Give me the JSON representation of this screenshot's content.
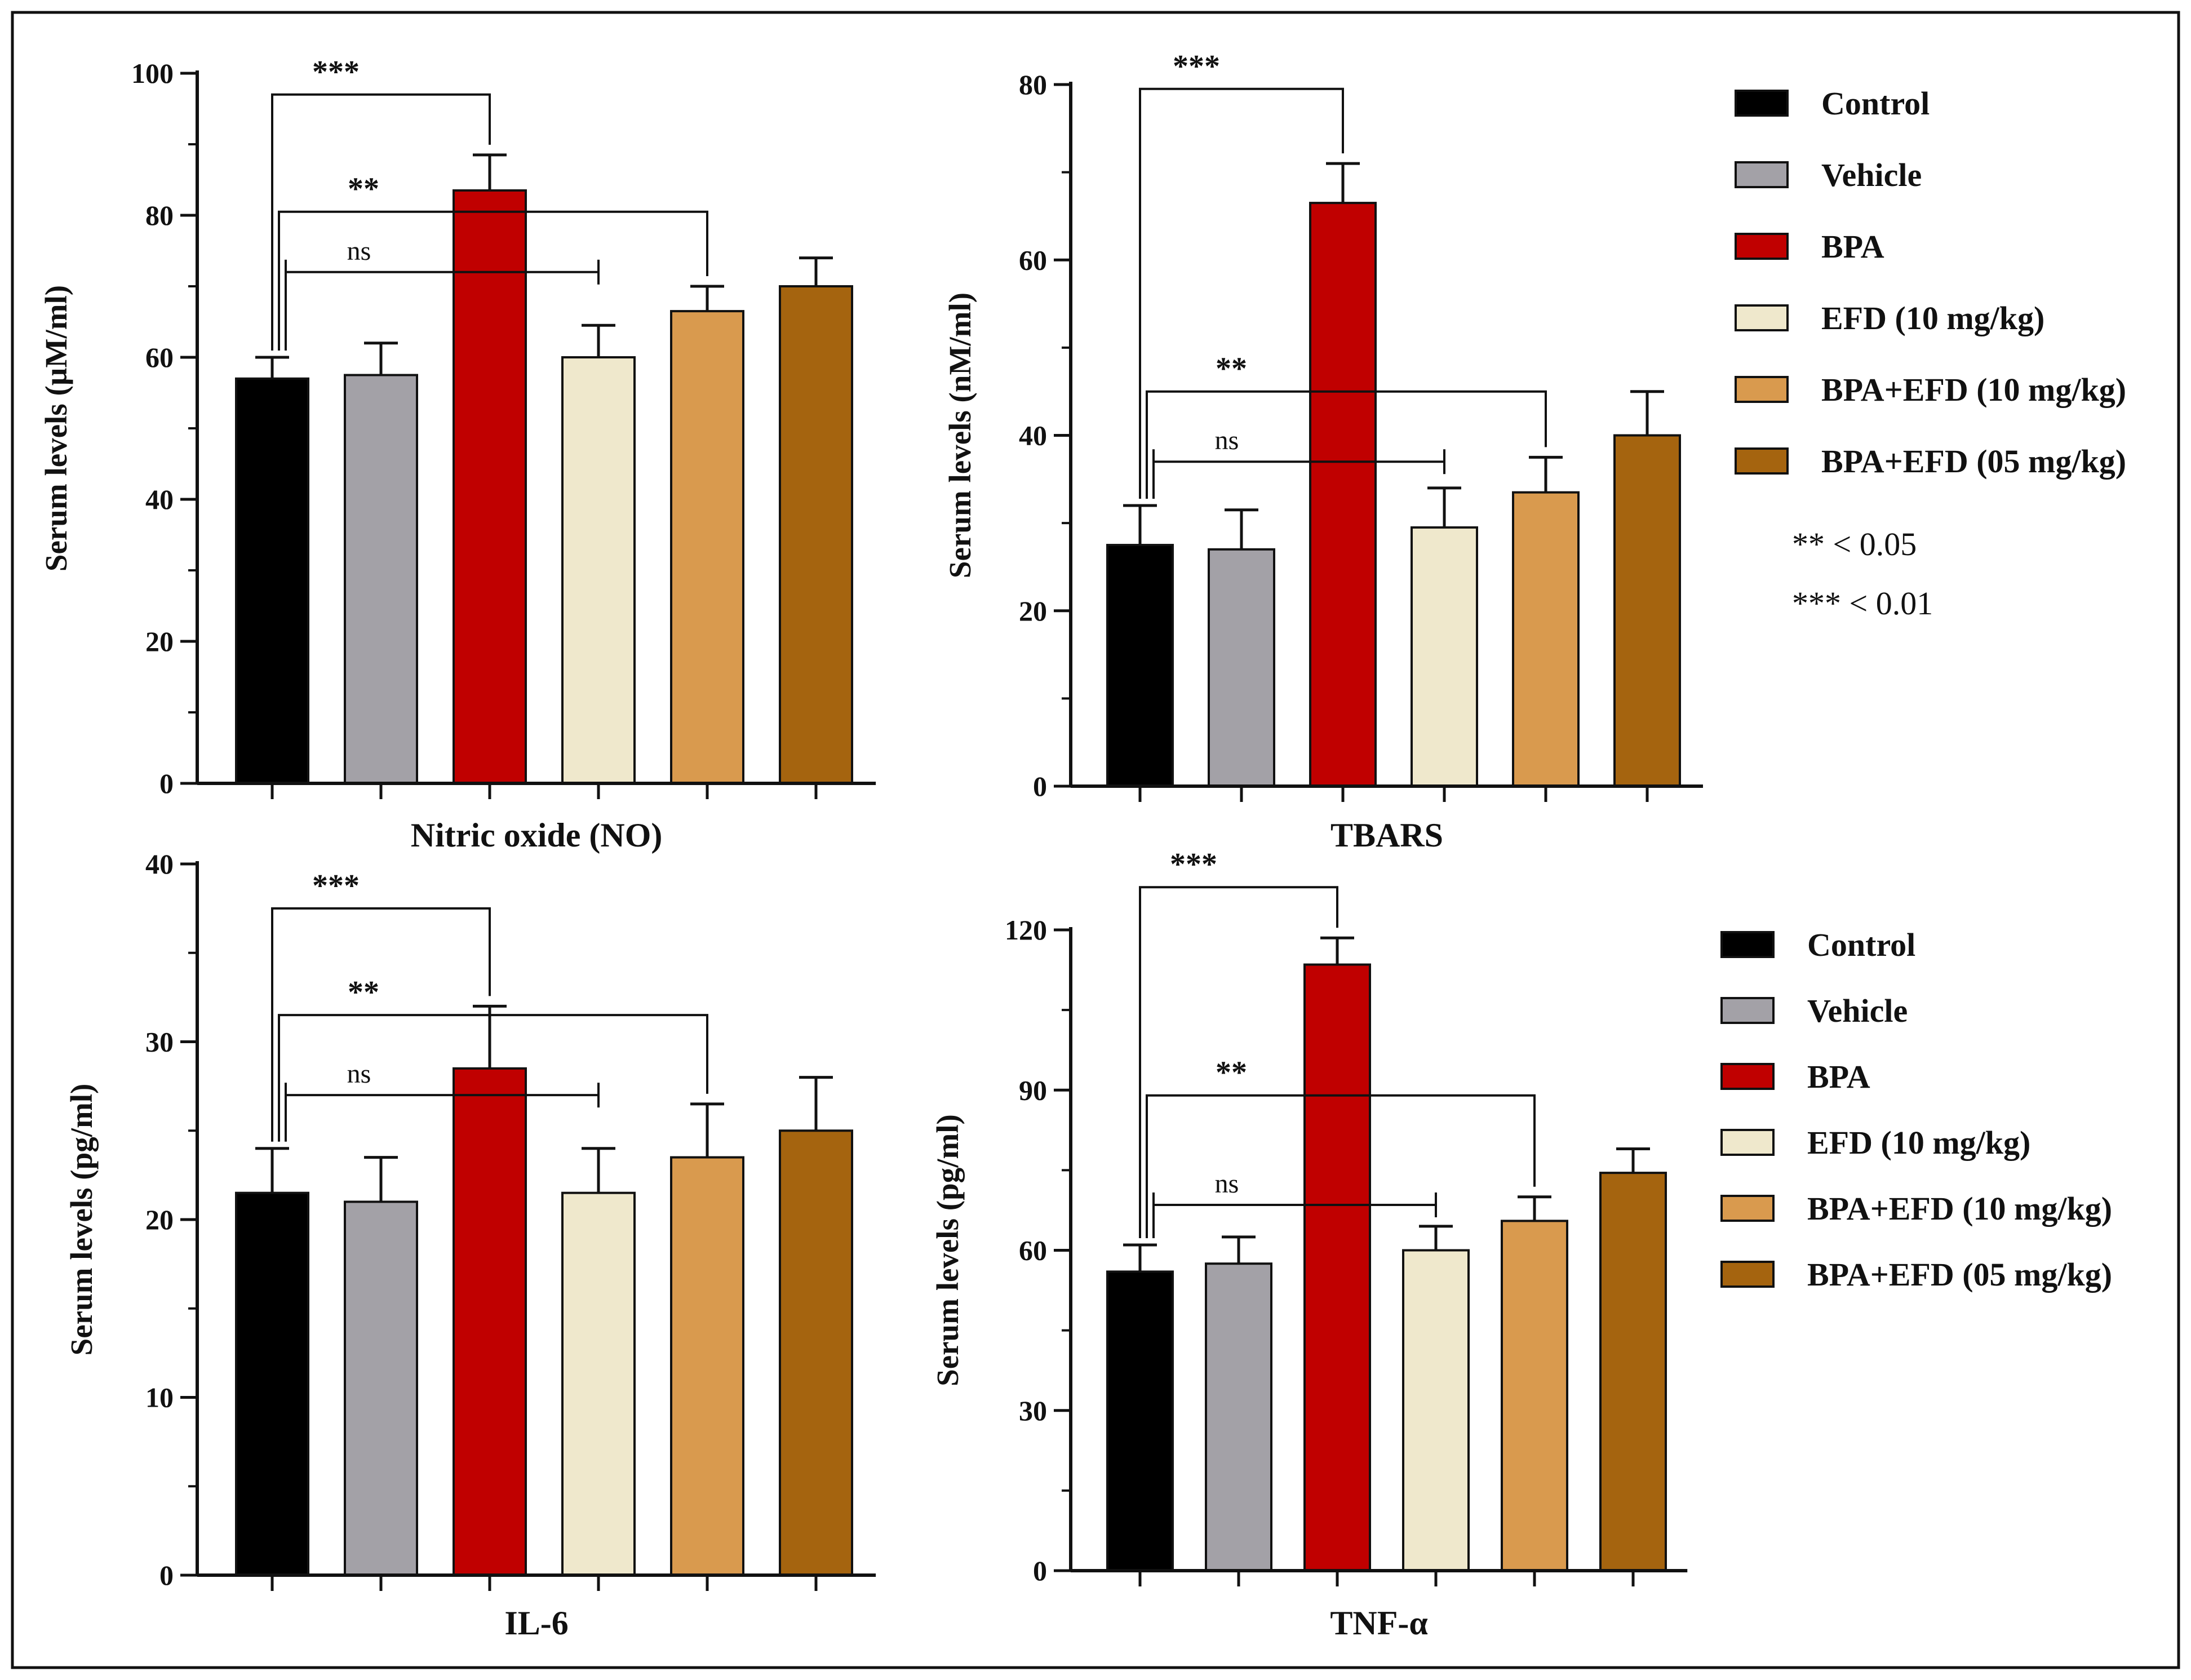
{
  "figure": {
    "frame": true
  },
  "groups": [
    "Control",
    "Vehicle",
    "BPA",
    "EFD (10 mg/kg)",
    "BPA+EFD (10 mg/kg)",
    "BPA+EFD (05 mg/kg)"
  ],
  "colors": [
    "#000000",
    "#a3a1a7",
    "#c00000",
    "#efe8cc",
    "#d99a4e",
    "#a5640f"
  ],
  "significance_note": [
    "** < 0.05",
    "*** < 0.01"
  ],
  "chart_data": [
    {
      "type": "bar",
      "title": "Nitric oxide (NO)",
      "xlabel": "Nitric oxide (NO)",
      "ylabel": "Serum levels (µM/ml)",
      "categories": [
        "Control",
        "Vehicle",
        "BPA",
        "EFD (10 mg/kg)",
        "BPA+EFD (10 mg/kg)",
        "BPA+EFD (05 mg/kg)"
      ],
      "values": [
        57,
        57.5,
        83.5,
        60,
        66.5,
        70
      ],
      "errors": [
        3,
        4.5,
        5,
        4.5,
        3.5,
        4
      ],
      "ylim": [
        0,
        100
      ],
      "yticks": [
        0,
        20,
        40,
        60,
        80,
        100
      ],
      "annotations": [
        {
          "from": 0,
          "to": 2,
          "label": "***",
          "y": 97
        },
        {
          "from": 0,
          "to": 4,
          "label": "**",
          "y": 80.5
        },
        {
          "from": 0,
          "to": 3,
          "label": "ns",
          "y": 72
        }
      ]
    },
    {
      "type": "bar",
      "title": "TBARS",
      "xlabel": "TBARS",
      "ylabel": "Serum levels (nM/ml)",
      "categories": [
        "Control",
        "Vehicle",
        "BPA",
        "EFD (10 mg/kg)",
        "BPA+EFD (10 mg/kg)",
        "BPA+EFD (05 mg/kg)"
      ],
      "values": [
        27.5,
        27,
        66.5,
        29.5,
        33.5,
        40
      ],
      "errors": [
        4.5,
        4.5,
        4.5,
        4.5,
        4,
        5
      ],
      "ylim": [
        0,
        80
      ],
      "yticks": [
        0,
        20,
        40,
        60,
        80
      ],
      "annotations": [
        {
          "from": 0,
          "to": 2,
          "label": "***",
          "y": 79.5
        },
        {
          "from": 0,
          "to": 4,
          "label": "**",
          "y": 45
        },
        {
          "from": 0,
          "to": 3,
          "label": "ns",
          "y": 37
        }
      ]
    },
    {
      "type": "bar",
      "title": "IL-6",
      "xlabel": "IL-6",
      "ylabel": "Serum levels (pg/ml)",
      "categories": [
        "Control",
        "Vehicle",
        "BPA",
        "EFD (10 mg/kg)",
        "BPA+EFD (10 mg/kg)",
        "BPA+EFD (05 mg/kg)"
      ],
      "values": [
        21.5,
        21,
        28.5,
        21.5,
        23.5,
        25
      ],
      "errors": [
        2.5,
        2.5,
        3.5,
        2.5,
        3,
        3
      ],
      "ylim": [
        0,
        40
      ],
      "yticks": [
        0,
        10,
        20,
        30,
        40
      ],
      "annotations": [
        {
          "from": 0,
          "to": 2,
          "label": "***",
          "y": 37.5
        },
        {
          "from": 0,
          "to": 4,
          "label": "**",
          "y": 31.5
        },
        {
          "from": 0,
          "to": 3,
          "label": "ns",
          "y": 27
        }
      ]
    },
    {
      "type": "bar",
      "title": "TNF-α",
      "xlabel": "TNF-α",
      "ylabel": "Serum levels (pg/ml)",
      "categories": [
        "Control",
        "Vehicle",
        "BPA",
        "EFD (10 mg/kg)",
        "BPA+EFD (10 mg/kg)",
        "BPA+EFD (05 mg/kg)"
      ],
      "values": [
        56,
        57.5,
        113.5,
        60,
        65.5,
        74.5
      ],
      "errors": [
        5,
        5,
        5,
        4.5,
        4.5,
        4.5
      ],
      "ylim": [
        0,
        120
      ],
      "yticks": [
        0,
        30,
        60,
        90,
        120
      ],
      "annotations": [
        {
          "from": 0,
          "to": 2,
          "label": "***",
          "y": 128
        },
        {
          "from": 0,
          "to": 4,
          "label": "**",
          "y": 89
        },
        {
          "from": 0,
          "to": 3,
          "label": "ns",
          "y": 68.5
        }
      ]
    }
  ]
}
